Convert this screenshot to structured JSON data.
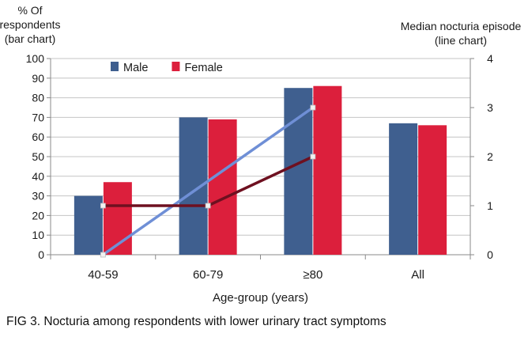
{
  "caption": "FIG 3. Nocturia among respondents with lower urinary tract symptoms",
  "chart_data": {
    "type": "bar",
    "categories": [
      "40-59",
      "60-79",
      "≥80",
      "All"
    ],
    "xlabel": "Age-group (years)",
    "ylabel_left": [
      "% Of",
      "respondents",
      "(bar chart)"
    ],
    "ylabel_right": [
      "Median nocturia episode",
      "(line chart)"
    ],
    "ylim_left": [
      0,
      100
    ],
    "yticks_left": [
      0,
      10,
      20,
      30,
      40,
      50,
      60,
      70,
      80,
      90,
      100
    ],
    "ylim_right": [
      0,
      4
    ],
    "yticks_right": [
      0,
      1,
      2,
      3,
      4
    ],
    "grid": true,
    "legend": "top-left",
    "bar_series": [
      {
        "name": "Male",
        "color": "#3f5f8f",
        "values": [
          30,
          70,
          85,
          67
        ]
      },
      {
        "name": "Female",
        "color": "#dc1f3c",
        "values": [
          37,
          69,
          86,
          66
        ]
      }
    ],
    "line_series": [
      {
        "name": "Male",
        "color": "#6f8fd6",
        "values": [
          0,
          null,
          3,
          null
        ]
      },
      {
        "name": "Female",
        "color": "#6e1020",
        "values": [
          1,
          1,
          2,
          null
        ]
      }
    ]
  }
}
